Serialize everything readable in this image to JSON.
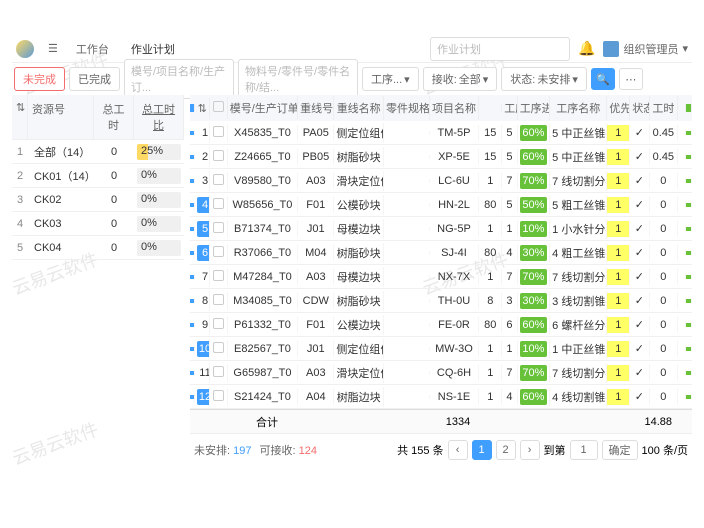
{
  "watermarks": [
    "云易云软件",
    "云易云软件",
    "云易云软件",
    "云易云软件",
    "云易云软件"
  ],
  "header": {
    "tab1": "工作台",
    "tab2": "作业计划",
    "search_ph": "作业计划",
    "user_label": "组织管理员"
  },
  "toolbar": {
    "b1": "未完成",
    "b2": "已完成",
    "in1": "模号/项目名称/生产订...",
    "in2": "物料号/零件号/零件名称/结...",
    "sel1": "工序...",
    "sel2_l": "接收:",
    "sel2": "全部",
    "sel3_l": "状态:",
    "sel3": "未安排"
  },
  "left": {
    "h": [
      "",
      "资源号",
      "总工时",
      "总工时比"
    ],
    "rows": [
      {
        "n": "1",
        "name": "全部（14）",
        "hrs": "0",
        "pct": 25
      },
      {
        "n": "2",
        "name": "CK01（14）",
        "hrs": "0",
        "pct": 0
      },
      {
        "n": "3",
        "name": "CK02",
        "hrs": "0",
        "pct": 0
      },
      {
        "n": "4",
        "name": "CK03",
        "hrs": "0",
        "pct": 0
      },
      {
        "n": "5",
        "name": "CK04",
        "hrs": "0",
        "pct": 0
      }
    ]
  },
  "right": {
    "h": [
      "",
      "",
      "",
      "模号/生产订单号",
      "重线号",
      "重线名称",
      "零件规格",
      "项目名称",
      "",
      "工序号",
      "工序进度",
      "工序名称",
      "优先级",
      "状态",
      "工时",
      "计划"
    ],
    "rows": [
      {
        "n": "1",
        "hl": 0,
        "code": "X45835_T0",
        "c3": "PA05",
        "c4": "侧定位组件",
        "c5": "",
        "c6": "TM-5P",
        "c7": "15",
        "c8": "5",
        "pct": 60,
        "c10": "5 中正丝锥孔",
        "pri": "1",
        "hrs": "0.45"
      },
      {
        "n": "2",
        "hl": 0,
        "code": "Z24665_T0",
        "c3": "PB05",
        "c4": "树脂砂块",
        "c5": "",
        "c6": "XP-5E",
        "c7": "15",
        "c8": "5",
        "pct": 60,
        "c10": "5 中正丝锥孔",
        "pri": "1",
        "hrs": "0.45"
      },
      {
        "n": "3",
        "hl": 0,
        "code": "V89580_T0",
        "c3": "A03",
        "c4": "滑块定位件",
        "c5": "",
        "c6": "LC-6U",
        "c7": "1",
        "c8": "7",
        "pct": 70,
        "c10": "7 线切割分孔",
        "pri": "1",
        "hrs": "0"
      },
      {
        "n": "4",
        "hl": 1,
        "code": "W85656_T0",
        "c3": "F01",
        "c4": "公模砂块",
        "c5": "",
        "c6": "HN-2L",
        "c7": "80",
        "c8": "5",
        "pct": 50,
        "c10": "5 粗工丝锥孔",
        "pri": "1",
        "hrs": "0"
      },
      {
        "n": "5",
        "hl": 1,
        "code": "B71374_T0",
        "c3": "J01",
        "c4": "母模边块",
        "c5": "",
        "c6": "NG-5P",
        "c7": "1",
        "c8": "1",
        "pct": 10,
        "c10": "1 小水针分孔",
        "pri": "1",
        "hrs": "0"
      },
      {
        "n": "6",
        "hl": 1,
        "code": "R37066_T0",
        "c3": "M04",
        "c4": "树脂砂块",
        "c5": "",
        "c6": "SJ-4I",
        "c7": "80",
        "c8": "4",
        "pct": 30,
        "c10": "4 粗工丝锥孔",
        "pri": "1",
        "hrs": "0"
      },
      {
        "n": "7",
        "hl": 0,
        "code": "M47284_T0",
        "c3": "A03",
        "c4": "母模边块",
        "c5": "",
        "c6": "NX-7X",
        "c7": "1",
        "c8": "7",
        "pct": 70,
        "c10": "7 线切割分孔",
        "pri": "1",
        "hrs": "0"
      },
      {
        "n": "8",
        "hl": 0,
        "code": "M34085_T0",
        "c3": "CDW",
        "c4": "树脂砂块",
        "c5": "",
        "c6": "TH-0U",
        "c7": "8",
        "c8": "3",
        "pct": 30,
        "c10": "3 线切割锥孔",
        "pri": "1",
        "hrs": "0"
      },
      {
        "n": "9",
        "hl": 0,
        "code": "P61332_T0",
        "c3": "F01",
        "c4": "公模边块",
        "c5": "",
        "c6": "FE-0R",
        "c7": "80",
        "c8": "6",
        "pct": 60,
        "c10": "6 螺杆丝分孔",
        "pri": "1",
        "hrs": "0"
      },
      {
        "n": "10",
        "hl": 1,
        "code": "E82567_T0",
        "c3": "J01",
        "c4": "侧定位组件",
        "c5": "",
        "c6": "MW-3O",
        "c7": "1",
        "c8": "1",
        "pct": 10,
        "c10": "1 中正丝锥孔",
        "pri": "1",
        "hrs": "0"
      },
      {
        "n": "11",
        "hl": 0,
        "code": "G65987_T0",
        "c3": "A03",
        "c4": "滑块定位件",
        "c5": "",
        "c6": "CQ-6H",
        "c7": "1",
        "c8": "7",
        "pct": 70,
        "c10": "7 线切割分孔",
        "pri": "1",
        "hrs": "0"
      },
      {
        "n": "12",
        "hl": 1,
        "code": "S21424_T0",
        "c3": "A04",
        "c4": "树脂边块",
        "c5": "",
        "c6": "NS-1E",
        "c7": "1",
        "c8": "4",
        "pct": 60,
        "c10": "4 线切割锥孔",
        "pri": "1",
        "hrs": "0"
      }
    ],
    "sum": {
      "label": "合计",
      "total": "1334",
      "hrs": "14.88"
    }
  },
  "footer": {
    "l1": "未安排:",
    "v1": "197",
    "l2": "可接收:",
    "v2": "124",
    "total": "共 155 条",
    "pages": [
      "1",
      "2"
    ],
    "jump_l": "到第",
    "jump_v": "1",
    "confirm": "确定",
    "size": "100 条/页"
  }
}
